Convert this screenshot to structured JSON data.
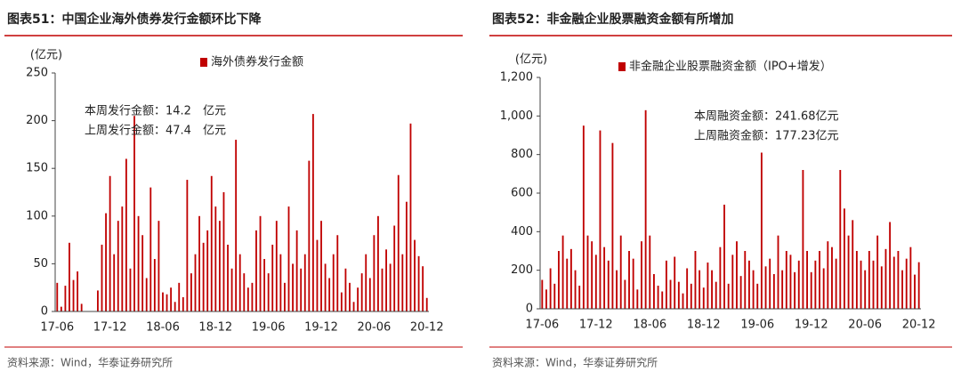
{
  "chart_data": [
    {
      "type": "bar",
      "title": "图表51：中国企业海外债券发行金额环比下降",
      "ylabel": "(亿元)",
      "categories": [
        "17-06",
        null,
        null,
        null,
        null,
        null,
        null,
        null,
        null,
        null,
        null,
        null,
        null,
        "17-12",
        null,
        null,
        null,
        null,
        null,
        null,
        null,
        null,
        null,
        null,
        null,
        null,
        "18-06",
        null,
        null,
        null,
        null,
        null,
        null,
        null,
        null,
        null,
        null,
        null,
        null,
        "18-12",
        null,
        null,
        null,
        null,
        null,
        null,
        null,
        null,
        null,
        null,
        null,
        null,
        "19-06",
        null,
        null,
        null,
        null,
        null,
        null,
        null,
        null,
        null,
        null,
        null,
        null,
        "19-12",
        null,
        null,
        null,
        null,
        null,
        null,
        null,
        null,
        null,
        null,
        null,
        null,
        "20-06",
        null,
        null,
        null,
        null,
        null,
        null,
        null,
        null,
        null,
        null,
        null,
        null,
        "20-12"
      ],
      "series": [
        {
          "name": "海外债券发行金额",
          "color": "#c00000",
          "values": [
            30,
            5,
            27,
            72,
            33,
            42,
            8,
            0,
            0,
            0,
            22,
            70,
            103,
            142,
            60,
            95,
            110,
            160,
            45,
            205,
            100,
            80,
            35,
            130,
            55,
            95,
            20,
            18,
            25,
            10,
            30,
            15,
            138,
            40,
            60,
            100,
            72,
            85,
            142,
            110,
            95,
            125,
            70,
            45,
            180,
            60,
            40,
            25,
            30,
            85,
            100,
            55,
            40,
            70,
            95,
            60,
            30,
            110,
            50,
            85,
            45,
            60,
            158,
            207,
            75,
            95,
            50,
            35,
            60,
            80,
            20,
            45,
            30,
            10,
            25,
            40,
            60,
            35,
            80,
            100,
            45,
            65,
            50,
            90,
            143,
            60,
            115,
            197,
            75,
            58,
            47.4,
            14.2
          ]
        }
      ],
      "ylim": [
        0,
        250
      ],
      "yticks": [
        0,
        50,
        100,
        150,
        200,
        250
      ],
      "annotations": [
        "本周发行金额：14.2　亿元",
        "上周发行金额：47.4　亿元"
      ],
      "source": "资料来源：Wind，华泰证券研究所"
    },
    {
      "type": "bar",
      "title": "图表52：非金融企业股票融资金额有所增加",
      "ylabel": "(亿元)",
      "categories": [
        "17-06",
        null,
        null,
        null,
        null,
        null,
        null,
        null,
        null,
        null,
        null,
        null,
        null,
        "17-12",
        null,
        null,
        null,
        null,
        null,
        null,
        null,
        null,
        null,
        null,
        null,
        null,
        "18-06",
        null,
        null,
        null,
        null,
        null,
        null,
        null,
        null,
        null,
        null,
        null,
        null,
        "18-12",
        null,
        null,
        null,
        null,
        null,
        null,
        null,
        null,
        null,
        null,
        null,
        null,
        "19-06",
        null,
        null,
        null,
        null,
        null,
        null,
        null,
        null,
        null,
        null,
        null,
        null,
        "19-12",
        null,
        null,
        null,
        null,
        null,
        null,
        null,
        null,
        null,
        null,
        null,
        null,
        "20-06",
        null,
        null,
        null,
        null,
        null,
        null,
        null,
        null,
        null,
        null,
        null,
        null,
        "20-12"
      ],
      "series": [
        {
          "name": "非金融企业股票融资金额（IPO+增发）",
          "color": "#c00000",
          "values": [
            150,
            100,
            210,
            130,
            300,
            380,
            260,
            310,
            200,
            120,
            950,
            380,
            350,
            280,
            925,
            320,
            250,
            860,
            200,
            380,
            150,
            300,
            260,
            100,
            350,
            1030,
            380,
            180,
            120,
            90,
            250,
            150,
            270,
            140,
            80,
            210,
            130,
            300,
            200,
            110,
            240,
            200,
            140,
            320,
            540,
            130,
            280,
            350,
            170,
            300,
            250,
            200,
            130,
            810,
            220,
            260,
            180,
            380,
            200,
            300,
            280,
            190,
            250,
            720,
            300,
            190,
            250,
            300,
            210,
            350,
            320,
            260,
            720,
            520,
            380,
            460,
            300,
            250,
            200,
            300,
            250,
            380,
            220,
            310,
            450,
            270,
            300,
            200,
            260,
            320,
            177.23,
            241.68
          ]
        }
      ],
      "ylim": [
        0,
        1200
      ],
      "yticks": [
        0,
        200,
        400,
        600,
        800,
        {
          "value": 1000,
          "label": "1,000"
        },
        {
          "value": 1200,
          "label": "1,200"
        }
      ],
      "annotations": [
        "本周融资金额：241.68亿元",
        "上周融资金额：177.23亿元"
      ],
      "source": "资料来源：Wind，华泰证券研究所"
    }
  ]
}
